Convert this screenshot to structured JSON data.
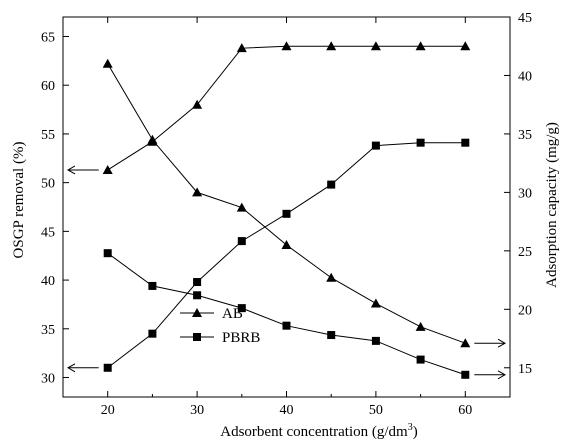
{
  "chart_data": {
    "type": "line",
    "x_label": "Adsorbent concentration (g/dm",
    "x_label_sup": "3",
    "x_label_end": ")",
    "y_left_label": "OSGP removal (%)",
    "y_right_label": "Adsorption capacity (mg/g)",
    "x_ticks": [
      20,
      30,
      40,
      50,
      60
    ],
    "x_range": [
      15,
      65
    ],
    "y_left_ticks": [
      30,
      35,
      40,
      45,
      50,
      55,
      60,
      65
    ],
    "y_left_range": [
      28,
      67
    ],
    "y_right_ticks": [
      15,
      20,
      25,
      30,
      35,
      40,
      45
    ],
    "y_right_range": [
      12.5,
      45
    ],
    "x": [
      20,
      25,
      30,
      35,
      40,
      45,
      50,
      55,
      60
    ],
    "series": [
      {
        "name": "AB",
        "marker": "triangle",
        "removal_pct": [
          51.3,
          54.2,
          58.0,
          63.8,
          64.0,
          64.0,
          64.0,
          64.0,
          64.0
        ],
        "capacity_mg_g": [
          41.0,
          34.5,
          30.0,
          28.7,
          25.5,
          22.7,
          20.5,
          18.5,
          17.1
        ]
      },
      {
        "name": "PBRB",
        "marker": "square",
        "removal_pct": [
          31.0,
          34.5,
          39.8,
          44.0,
          46.8,
          49.8,
          53.8,
          54.1,
          54.1
        ],
        "capacity_mg_g": [
          24.8,
          22.0,
          21.2,
          20.1,
          18.6,
          17.8,
          17.3,
          15.7,
          14.4
        ]
      }
    ],
    "legend": {
      "position": "bottom-left",
      "entries": [
        "AB",
        "PBRB"
      ]
    }
  }
}
